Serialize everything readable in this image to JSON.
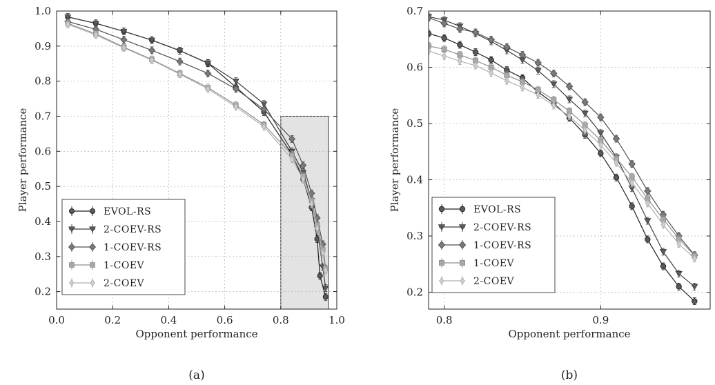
{
  "legend_entries": [
    "EVOL-RS",
    "2-COEV-RS",
    "1-COEV-RS",
    "1-COEV",
    "2-COEV"
  ],
  "series_style": {
    "EVOL-RS": {
      "color": "#1e1e1e",
      "fill": "#5a5a5a",
      "marker": "circle"
    },
    "2-COEV-RS": {
      "color": "#3c3c3c",
      "fill": "#5c5c5c",
      "marker": "triangle-down"
    },
    "1-COEV-RS": {
      "color": "#505050",
      "fill": "#7a7a7a",
      "marker": "diamond"
    },
    "1-COEV": {
      "color": "#8e8e8e",
      "fill": "#a8a8a8",
      "marker": "square"
    },
    "2-COEV": {
      "color": "#b0b0b0",
      "fill": "#cfcfcf",
      "marker": "diamond-thin"
    }
  },
  "chart_data": [
    {
      "type": "line",
      "caption": "(a)",
      "xlabel": "Opponent performance",
      "ylabel": "Player performance",
      "xlim": [
        0.0,
        1.0
      ],
      "ylim": [
        0.15,
        1.0
      ],
      "xticks": [
        0.0,
        0.2,
        0.4,
        0.6,
        0.8,
        1.0
      ],
      "xtick_labels": [
        "0.0",
        "0.2",
        "0.4",
        "0.6",
        "0.8",
        "1.0"
      ],
      "yticks": [
        0.2,
        0.3,
        0.4,
        0.5,
        0.6,
        0.7,
        0.8,
        0.9,
        1.0
      ],
      "ytick_labels": [
        "0.2",
        "0.3",
        "0.4",
        "0.5",
        "0.6",
        "0.7",
        "0.8",
        "0.9",
        "1.0"
      ],
      "grid": true,
      "legend_position": "lower-left",
      "highlight_region": {
        "x": [
          0.8,
          0.97
        ],
        "y": [
          0.15,
          0.7
        ]
      },
      "series": [
        {
          "name": "EVOL-RS",
          "points": [
            [
              0.04,
              0.983
            ],
            [
              0.14,
              0.965
            ],
            [
              0.24,
              0.942
            ],
            [
              0.34,
              0.917
            ],
            [
              0.44,
              0.887
            ],
            [
              0.54,
              0.851
            ],
            [
              0.64,
              0.783
            ],
            [
              0.74,
              0.712
            ],
            [
              0.84,
              0.591
            ],
            [
              0.88,
              0.52
            ],
            [
              0.91,
              0.44
            ],
            [
              0.93,
              0.35
            ],
            [
              0.94,
              0.245
            ],
            [
              0.96,
              0.185
            ]
          ]
        },
        {
          "name": "2-COEV-RS",
          "points": [
            [
              0.04,
              0.983
            ],
            [
              0.14,
              0.965
            ],
            [
              0.24,
              0.942
            ],
            [
              0.34,
              0.917
            ],
            [
              0.44,
              0.887
            ],
            [
              0.54,
              0.852
            ],
            [
              0.64,
              0.8
            ],
            [
              0.74,
              0.735
            ],
            [
              0.84,
              0.6
            ],
            [
              0.88,
              0.54
            ],
            [
              0.91,
              0.46
            ],
            [
              0.93,
              0.38
            ],
            [
              0.95,
              0.27
            ],
            [
              0.96,
              0.21
            ]
          ]
        },
        {
          "name": "1-COEV-RS",
          "points": [
            [
              0.04,
              0.97
            ],
            [
              0.14,
              0.948
            ],
            [
              0.24,
              0.918
            ],
            [
              0.34,
              0.888
            ],
            [
              0.44,
              0.856
            ],
            [
              0.54,
              0.822
            ],
            [
              0.64,
              0.778
            ],
            [
              0.74,
              0.72
            ],
            [
              0.84,
              0.635
            ],
            [
              0.88,
              0.56
            ],
            [
              0.91,
              0.48
            ],
            [
              0.93,
              0.41
            ],
            [
              0.95,
              0.335
            ],
            [
              0.96,
              0.265
            ]
          ]
        },
        {
          "name": "1-COEV",
          "points": [
            [
              0.04,
              0.965
            ],
            [
              0.14,
              0.935
            ],
            [
              0.24,
              0.897
            ],
            [
              0.34,
              0.862
            ],
            [
              0.44,
              0.822
            ],
            [
              0.54,
              0.782
            ],
            [
              0.64,
              0.732
            ],
            [
              0.74,
              0.676
            ],
            [
              0.84,
              0.59
            ],
            [
              0.88,
              0.53
            ],
            [
              0.91,
              0.46
            ],
            [
              0.93,
              0.39
            ],
            [
              0.95,
              0.32
            ],
            [
              0.96,
              0.265
            ]
          ]
        },
        {
          "name": "2-COEV",
          "points": [
            [
              0.04,
              0.962
            ],
            [
              0.14,
              0.932
            ],
            [
              0.24,
              0.895
            ],
            [
              0.34,
              0.86
            ],
            [
              0.44,
              0.82
            ],
            [
              0.54,
              0.778
            ],
            [
              0.64,
              0.727
            ],
            [
              0.74,
              0.67
            ],
            [
              0.84,
              0.578
            ],
            [
              0.88,
              0.52
            ],
            [
              0.91,
              0.45
            ],
            [
              0.93,
              0.38
            ],
            [
              0.95,
              0.31
            ],
            [
              0.96,
              0.26
            ]
          ]
        }
      ]
    },
    {
      "type": "line",
      "caption": "(b)",
      "xlabel": "Opponent performance",
      "ylabel": "Player performance",
      "xlim": [
        0.79,
        0.97
      ],
      "ylim": [
        0.17,
        0.7
      ],
      "xticks": [
        0.8,
        0.9
      ],
      "xtick_labels": [
        "0.8",
        "0.9"
      ],
      "yticks": [
        0.2,
        0.3,
        0.4,
        0.5,
        0.6,
        0.7
      ],
      "ytick_labels": [
        "0.2",
        "0.3",
        "0.4",
        "0.5",
        "0.6",
        "0.7"
      ],
      "grid": true,
      "legend_position": "lower-left",
      "series": [
        {
          "name": "EVOL-RS",
          "points": [
            [
              0.79,
              0.66
            ],
            [
              0.8,
              0.652
            ],
            [
              0.81,
              0.64
            ],
            [
              0.82,
              0.627
            ],
            [
              0.83,
              0.613
            ],
            [
              0.84,
              0.595
            ],
            [
              0.85,
              0.581
            ],
            [
              0.86,
              0.556
            ],
            [
              0.87,
              0.536
            ],
            [
              0.88,
              0.51
            ],
            [
              0.89,
              0.48
            ],
            [
              0.9,
              0.447
            ],
            [
              0.91,
              0.404
            ],
            [
              0.92,
              0.353
            ],
            [
              0.93,
              0.294
            ],
            [
              0.94,
              0.246
            ],
            [
              0.95,
              0.21
            ],
            [
              0.96,
              0.184
            ]
          ]
        },
        {
          "name": "2-COEV-RS",
          "points": [
            [
              0.79,
              0.69
            ],
            [
              0.8,
              0.684
            ],
            [
              0.81,
              0.673
            ],
            [
              0.82,
              0.66
            ],
            [
              0.83,
              0.646
            ],
            [
              0.84,
              0.63
            ],
            [
              0.85,
              0.613
            ],
            [
              0.86,
              0.594
            ],
            [
              0.87,
              0.57
            ],
            [
              0.88,
              0.543
            ],
            [
              0.89,
              0.518
            ],
            [
              0.9,
              0.483
            ],
            [
              0.91,
              0.44
            ],
            [
              0.92,
              0.385
            ],
            [
              0.93,
              0.327
            ],
            [
              0.94,
              0.272
            ],
            [
              0.95,
              0.233
            ],
            [
              0.96,
              0.21
            ]
          ]
        },
        {
          "name": "1-COEV-RS",
          "points": [
            [
              0.79,
              0.688
            ],
            [
              0.8,
              0.678
            ],
            [
              0.81,
              0.668
            ],
            [
              0.82,
              0.662
            ],
            [
              0.83,
              0.649
            ],
            [
              0.84,
              0.636
            ],
            [
              0.85,
              0.622
            ],
            [
              0.86,
              0.608
            ],
            [
              0.87,
              0.589
            ],
            [
              0.88,
              0.566
            ],
            [
              0.89,
              0.538
            ],
            [
              0.9,
              0.511
            ],
            [
              0.91,
              0.473
            ],
            [
              0.92,
              0.428
            ],
            [
              0.93,
              0.38
            ],
            [
              0.94,
              0.338
            ],
            [
              0.95,
              0.3
            ],
            [
              0.96,
              0.266
            ]
          ]
        },
        {
          "name": "1-COEV",
          "points": [
            [
              0.79,
              0.638
            ],
            [
              0.8,
              0.632
            ],
            [
              0.81,
              0.622
            ],
            [
              0.82,
              0.612
            ],
            [
              0.83,
              0.6
            ],
            [
              0.84,
              0.586
            ],
            [
              0.85,
              0.574
            ],
            [
              0.86,
              0.56
            ],
            [
              0.87,
              0.542
            ],
            [
              0.88,
              0.522
            ],
            [
              0.89,
              0.497
            ],
            [
              0.9,
              0.47
            ],
            [
              0.91,
              0.438
            ],
            [
              0.92,
              0.405
            ],
            [
              0.93,
              0.366
            ],
            [
              0.94,
              0.33
            ],
            [
              0.95,
              0.295
            ],
            [
              0.96,
              0.265
            ]
          ]
        },
        {
          "name": "2-COEV",
          "points": [
            [
              0.79,
              0.629
            ],
            [
              0.8,
              0.62
            ],
            [
              0.81,
              0.611
            ],
            [
              0.82,
              0.603
            ],
            [
              0.83,
              0.59
            ],
            [
              0.84,
              0.576
            ],
            [
              0.85,
              0.564
            ],
            [
              0.86,
              0.551
            ],
            [
              0.87,
              0.532
            ],
            [
              0.88,
              0.513
            ],
            [
              0.89,
              0.488
            ],
            [
              0.9,
              0.462
            ],
            [
              0.91,
              0.43
            ],
            [
              0.92,
              0.394
            ],
            [
              0.93,
              0.358
            ],
            [
              0.94,
              0.32
            ],
            [
              0.95,
              0.286
            ],
            [
              0.96,
              0.26
            ]
          ]
        }
      ]
    }
  ]
}
